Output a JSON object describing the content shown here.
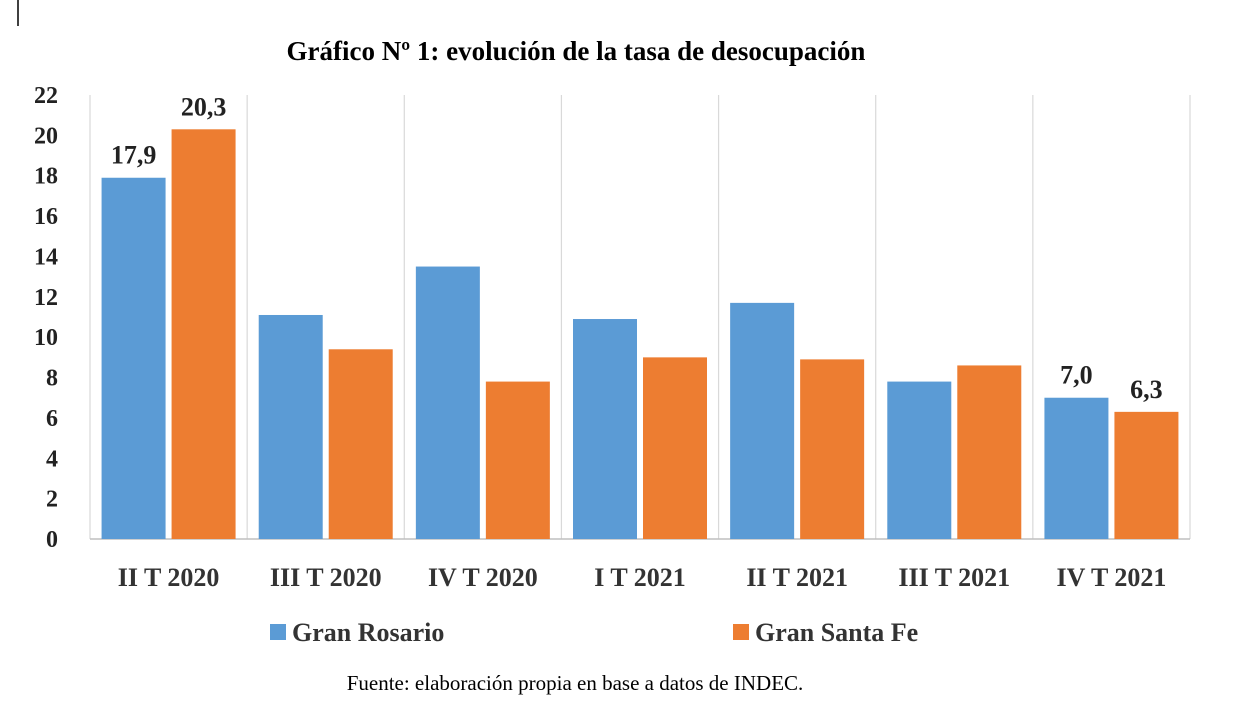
{
  "chart_data": {
    "type": "bar",
    "title": "Gráfico Nº 1: evolución de la tasa de desocupación",
    "categories": [
      "II T 2020",
      "III T 2020",
      "IV T 2020",
      "I T 2021",
      "II T 2021",
      "III T 2021",
      "IV T 2021"
    ],
    "series": [
      {
        "name": "Gran Rosario",
        "color": "#5b9bd5",
        "values": [
          17.9,
          11.1,
          13.5,
          10.9,
          11.7,
          7.8,
          7.0
        ]
      },
      {
        "name": "Gran Santa Fe",
        "color": "#ed7d31",
        "values": [
          20.3,
          9.4,
          7.8,
          9.0,
          8.9,
          8.6,
          6.3
        ]
      }
    ],
    "data_labels": [
      {
        "series": 0,
        "index": 0,
        "text": "17,9"
      },
      {
        "series": 1,
        "index": 0,
        "text": "20,3"
      },
      {
        "series": 0,
        "index": 6,
        "text": "7,0"
      },
      {
        "series": 1,
        "index": 6,
        "text": "6,3"
      }
    ],
    "yticks": [
      "0",
      "2",
      "4",
      "6",
      "8",
      "10",
      "12",
      "14",
      "16",
      "18",
      "20",
      "22"
    ],
    "ylim": [
      0,
      22
    ],
    "xlabel": "",
    "ylabel": "",
    "grid": "vertical",
    "legend": "bottom"
  },
  "source_note": "Fuente: elaboración propia en base a datos de INDEC."
}
